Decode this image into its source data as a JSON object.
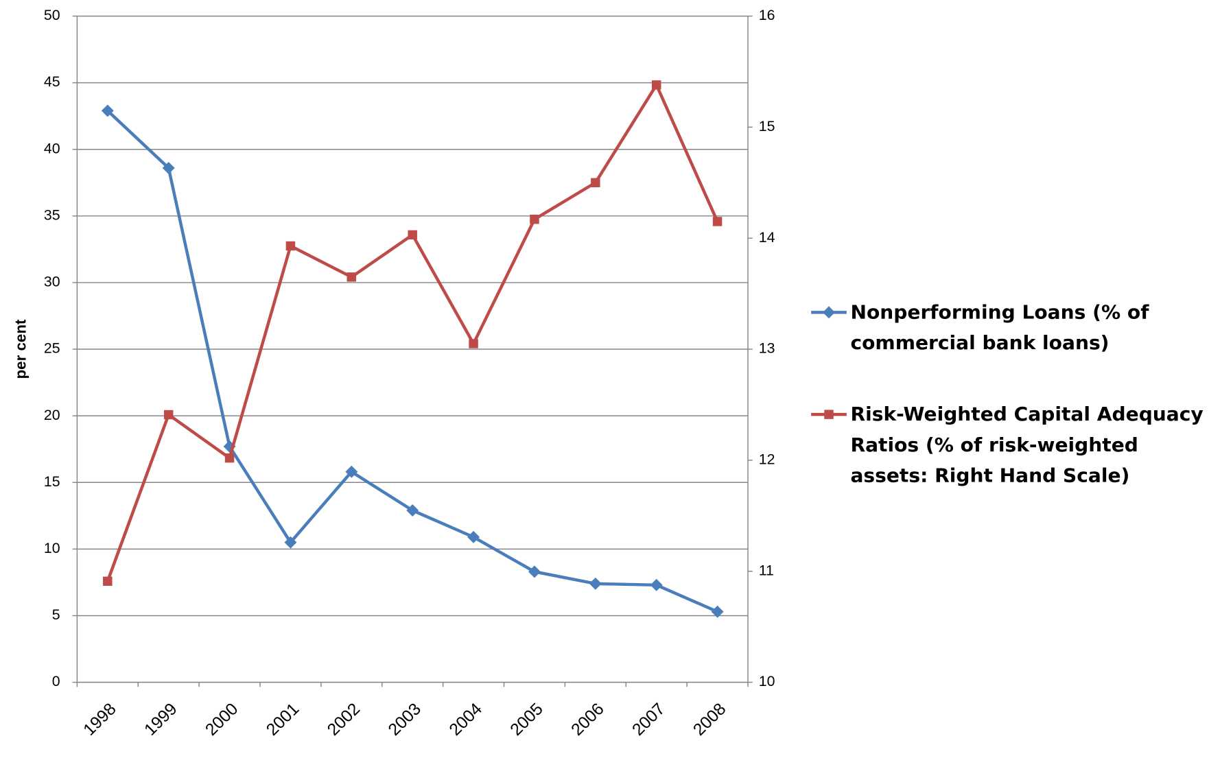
{
  "chart_data": {
    "type": "line",
    "categories": [
      "1998",
      "1999",
      "2000",
      "2001",
      "2002",
      "2003",
      "2004",
      "2005",
      "2006",
      "2007",
      "2008"
    ],
    "ylabel": "per cent",
    "ylim": [
      0,
      50
    ],
    "yticks": [
      0,
      5,
      10,
      15,
      20,
      25,
      30,
      35,
      40,
      45,
      50
    ],
    "y2lim": [
      10,
      16
    ],
    "y2ticks": [
      10,
      11,
      12,
      13,
      14,
      15,
      16
    ],
    "grid": true,
    "legend": "right",
    "series": [
      {
        "name": "Nonperforming Loans (% of commercial bank loans)",
        "color": "#4a7ebb",
        "marker": "diamond",
        "values": [
          42.9,
          38.6,
          17.7,
          10.5,
          15.8,
          12.9,
          10.9,
          8.3,
          7.4,
          7.3,
          5.3
        ]
      },
      {
        "name": "Risk-Weighted Capital Adequacy Ratios (% of risk-weighted assets: Right Hand Scale)",
        "color": "#be4b48",
        "marker": "square",
        "axis": "y2",
        "values": [
          10.91,
          12.41,
          12.02,
          13.93,
          13.65,
          14.03,
          13.05,
          14.17,
          14.5,
          15.38,
          14.15
        ]
      }
    ]
  }
}
